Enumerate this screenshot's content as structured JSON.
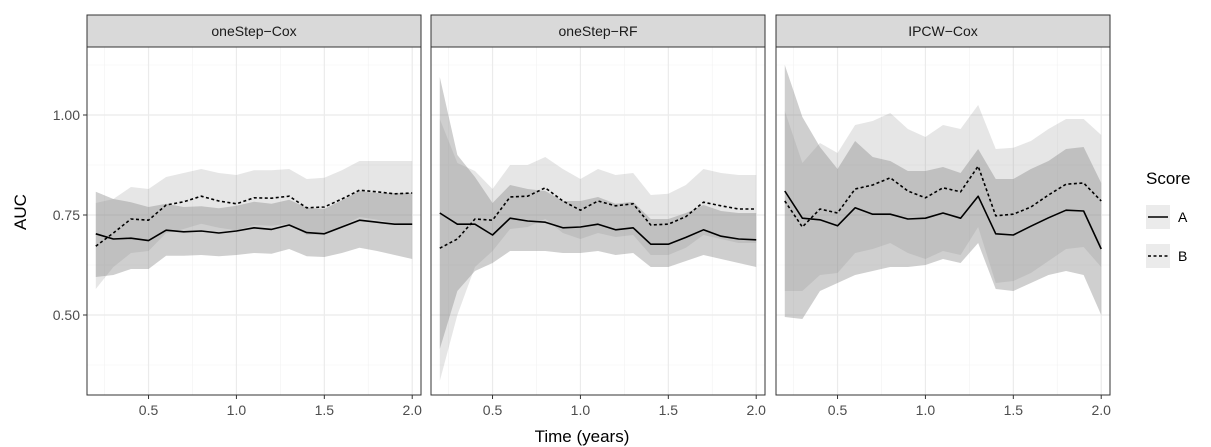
{
  "chart_data": {
    "type": "line",
    "xlabel": "Time (years)",
    "ylabel": "AUC",
    "xlim": [
      0.15,
      2.05
    ],
    "ylim": [
      0.3,
      1.17
    ],
    "xticks": [
      0.5,
      1.0,
      1.5,
      2.0
    ],
    "xtick_labels": [
      "0.5",
      "1.0",
      "1.5",
      "2.0"
    ],
    "yticks": [
      0.5,
      0.75,
      1.0
    ],
    "ytick_labels": [
      "0.50",
      "0.75",
      "1.00"
    ],
    "grid": true,
    "legend": {
      "title": "Score",
      "position": "right",
      "entries": [
        "A",
        "B"
      ]
    },
    "x": [
      0.2,
      0.3,
      0.4,
      0.5,
      0.6,
      0.7,
      0.8,
      0.9,
      1.0,
      1.1,
      1.2,
      1.3,
      1.4,
      1.5,
      1.6,
      1.7,
      1.8,
      1.9,
      2.0
    ],
    "panels": [
      {
        "title": "oneStep−Cox",
        "series": [
          {
            "name": "A",
            "line": "solid",
            "values": [
              0.703,
              0.69,
              0.692,
              0.686,
              0.712,
              0.708,
              0.71,
              0.705,
              0.71,
              0.718,
              0.714,
              0.725,
              0.706,
              0.703,
              0.72,
              0.737,
              0.732,
              0.727,
              0.727
            ],
            "lower": [
              0.595,
              0.6,
              0.615,
              0.615,
              0.648,
              0.648,
              0.65,
              0.647,
              0.65,
              0.655,
              0.653,
              0.665,
              0.647,
              0.645,
              0.655,
              0.668,
              0.66,
              0.65,
              0.64
            ],
            "upper": [
              0.808,
              0.79,
              0.782,
              0.77,
              0.778,
              0.77,
              0.772,
              0.767,
              0.773,
              0.783,
              0.778,
              0.788,
              0.768,
              0.765,
              0.787,
              0.81,
              0.805,
              0.805,
              0.805
            ]
          },
          {
            "name": "B",
            "line": "dashed",
            "values": [
              0.672,
              0.705,
              0.74,
              0.737,
              0.775,
              0.783,
              0.797,
              0.785,
              0.778,
              0.793,
              0.792,
              0.797,
              0.768,
              0.77,
              0.79,
              0.812,
              0.808,
              0.803,
              0.805
            ],
            "lower": [
              0.565,
              0.62,
              0.655,
              0.66,
              0.705,
              0.715,
              0.728,
              0.718,
              0.712,
              0.725,
              0.723,
              0.728,
              0.7,
              0.702,
              0.722,
              0.745,
              0.738,
              0.73,
              0.725
            ],
            "upper": [
              0.78,
              0.79,
              0.82,
              0.815,
              0.845,
              0.855,
              0.865,
              0.855,
              0.85,
              0.862,
              0.862,
              0.865,
              0.84,
              0.843,
              0.862,
              0.885,
              0.885,
              0.885,
              0.885
            ]
          }
        ]
      },
      {
        "title": "oneStep−RF",
        "series": [
          {
            "name": "A",
            "line": "solid",
            "values": [
              0.755,
              0.727,
              0.727,
              0.7,
              0.742,
              0.735,
              0.732,
              0.718,
              0.72,
              0.727,
              0.713,
              0.718,
              0.677,
              0.677,
              0.694,
              0.713,
              0.697,
              0.69,
              0.688
            ],
            "lower": [
              0.415,
              0.56,
              0.61,
              0.63,
              0.66,
              0.66,
              0.66,
              0.655,
              0.655,
              0.66,
              0.65,
              0.655,
              0.62,
              0.62,
              0.635,
              0.65,
              0.64,
              0.63,
              0.62
            ],
            "upper": [
              1.095,
              0.9,
              0.845,
              0.78,
              0.825,
              0.815,
              0.81,
              0.785,
              0.785,
              0.795,
              0.778,
              0.783,
              0.74,
              0.74,
              0.755,
              0.775,
              0.76,
              0.755,
              0.755
            ]
          },
          {
            "name": "B",
            "line": "dashed",
            "values": [
              0.667,
              0.69,
              0.74,
              0.737,
              0.795,
              0.797,
              0.818,
              0.785,
              0.762,
              0.785,
              0.773,
              0.778,
              0.725,
              0.727,
              0.746,
              0.782,
              0.773,
              0.765,
              0.765
            ],
            "lower": [
              0.335,
              0.5,
              0.62,
              0.66,
              0.715,
              0.72,
              0.74,
              0.705,
              0.69,
              0.705,
              0.695,
              0.7,
              0.65,
              0.65,
              0.668,
              0.7,
              0.69,
              0.68,
              0.68
            ],
            "upper": [
              0.99,
              0.88,
              0.86,
              0.815,
              0.875,
              0.875,
              0.895,
              0.865,
              0.84,
              0.865,
              0.85,
              0.855,
              0.8,
              0.803,
              0.825,
              0.865,
              0.855,
              0.85,
              0.85
            ]
          }
        ]
      },
      {
        "title": "IPCW−Cox",
        "series": [
          {
            "name": "A",
            "line": "solid",
            "values": [
              0.81,
              0.742,
              0.738,
              0.723,
              0.768,
              0.752,
              0.752,
              0.74,
              0.742,
              0.755,
              0.742,
              0.797,
              0.703,
              0.7,
              0.722,
              0.743,
              0.762,
              0.76,
              0.665
            ],
            "lower": [
              0.495,
              0.49,
              0.56,
              0.58,
              0.6,
              0.61,
              0.62,
              0.62,
              0.625,
              0.64,
              0.63,
              0.68,
              0.565,
              0.56,
              0.58,
              0.6,
              0.61,
              0.6,
              0.5
            ],
            "upper": [
              1.125,
              0.995,
              0.92,
              0.865,
              0.935,
              0.895,
              0.885,
              0.86,
              0.86,
              0.87,
              0.855,
              0.915,
              0.84,
              0.84,
              0.865,
              0.885,
              0.915,
              0.92,
              0.83
            ]
          },
          {
            "name": "B",
            "line": "dashed",
            "values": [
              0.785,
              0.72,
              0.765,
              0.755,
              0.815,
              0.825,
              0.843,
              0.81,
              0.793,
              0.818,
              0.808,
              0.872,
              0.748,
              0.752,
              0.77,
              0.8,
              0.827,
              0.83,
              0.785
            ],
            "lower": [
              0.56,
              0.56,
              0.6,
              0.605,
              0.655,
              0.665,
              0.68,
              0.655,
              0.64,
              0.66,
              0.65,
              0.72,
              0.58,
              0.585,
              0.605,
              0.635,
              0.665,
              0.67,
              0.62
            ],
            "upper": [
              1.01,
              0.88,
              0.93,
              0.905,
              0.975,
              0.985,
              1.005,
              0.965,
              0.945,
              0.975,
              0.965,
              1.025,
              0.915,
              0.918,
              0.935,
              0.965,
              0.99,
              0.99,
              0.95
            ]
          }
        ]
      }
    ]
  }
}
